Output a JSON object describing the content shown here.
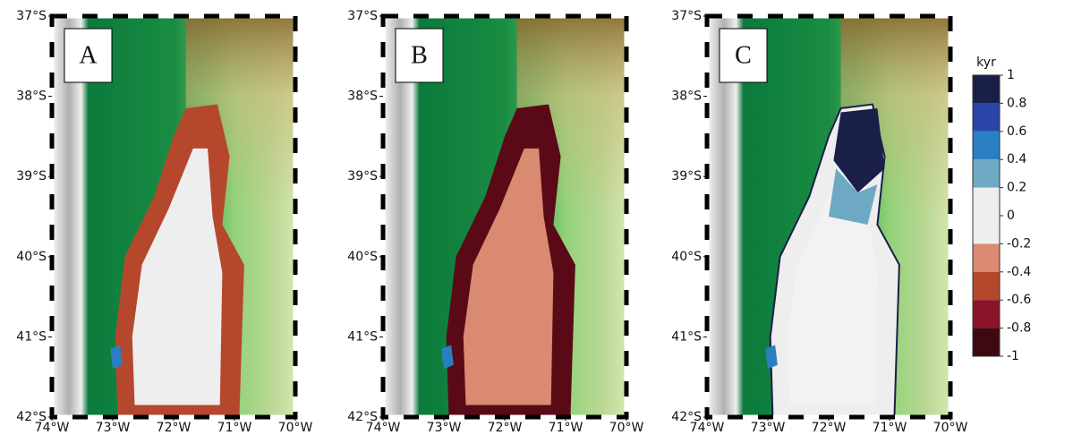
{
  "panels": [
    {
      "label": "A"
    },
    {
      "label": "B"
    },
    {
      "label": "C"
    }
  ],
  "lat_ticks": [
    {
      "value": -37,
      "label": "37°S"
    },
    {
      "value": -38,
      "label": "38°S"
    },
    {
      "value": -39,
      "label": "39°S"
    },
    {
      "value": -40,
      "label": "40°S"
    },
    {
      "value": -41,
      "label": "41°S"
    },
    {
      "value": -42,
      "label": "42°S"
    }
  ],
  "lon_ticks": [
    {
      "value": -74,
      "label": "74°W"
    },
    {
      "value": -73,
      "label": "73°W"
    },
    {
      "value": -72,
      "label": "72°W"
    },
    {
      "value": -71,
      "label": "71°W"
    },
    {
      "value": -70,
      "label": "70°W"
    }
  ],
  "colorbar": {
    "title": "kyr",
    "ticks": [
      1,
      0.8,
      0.6,
      0.4,
      0.2,
      0,
      -0.2,
      -0.4,
      -0.6,
      -0.8,
      -1
    ],
    "colors": [
      "#1a1f4a",
      "#2a45a8",
      "#2a7fc1",
      "#6ea9c4",
      "#eeeeee",
      "#eeeeee",
      "#d98a70",
      "#b5482c",
      "#8a1428",
      "#3e0a12"
    ]
  }
}
